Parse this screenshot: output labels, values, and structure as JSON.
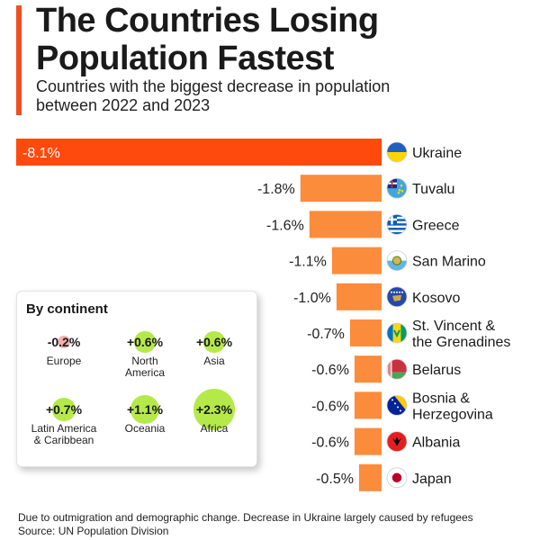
{
  "header": {
    "title_line1": "The Countries Losing",
    "title_line2": "Population Fastest",
    "subtitle_line1": "Countries with the biggest decrease in population",
    "subtitle_line2": "between 2022 and 2023"
  },
  "colors": {
    "accent": "#f04e23",
    "bar": "#fb8c3c",
    "bar_highlight": "#ff4a0e",
    "bubble": "#b5e94a",
    "negative_dot": "#f2b3b3"
  },
  "chart_data": {
    "type": "bar",
    "orientation": "horizontal",
    "title": "The Countries Losing Population Fastest",
    "subtitle": "Countries with the biggest decrease in population between 2022 and 2023",
    "unit": "%",
    "categories": [
      "Ukraine",
      "Tuvalu",
      "Greece",
      "San Marino",
      "Kosovo",
      "St. Vincent & the Grenadines",
      "Belarus",
      "Bosnia & Herzegovina",
      "Albania",
      "Japan"
    ],
    "values": [
      -8.1,
      -1.8,
      -1.6,
      -1.1,
      -1.0,
      -0.7,
      -0.6,
      -0.6,
      -0.6,
      -0.5
    ],
    "value_labels": [
      "-8.1%",
      "-1.8%",
      "-1.6%",
      "-1.1%",
      "-1.0%",
      "-0.7%",
      "-0.6%",
      "-0.6%",
      "-0.6%",
      "-0.5%"
    ],
    "country_label_lines": [
      [
        "Ukraine"
      ],
      [
        "Tuvalu"
      ],
      [
        "Greece"
      ],
      [
        "San Marino"
      ],
      [
        "Kosovo"
      ],
      [
        "St. Vincent &",
        "the Grenadines"
      ],
      [
        "Belarus"
      ],
      [
        "Bosnia &",
        "Herzegovina"
      ],
      [
        "Albania"
      ],
      [
        "Japan"
      ]
    ],
    "flags": [
      "ukraine-flag",
      "tuvalu-flag",
      "greece-flag",
      "san-marino-flag",
      "kosovo-flag",
      "st-vincent-flag",
      "belarus-flag",
      "bosnia-flag",
      "albania-flag",
      "japan-flag"
    ],
    "xlim": [
      -8.1,
      0
    ]
  },
  "continents": {
    "title": "By continent",
    "items": [
      {
        "name_lines": [
          "Europe"
        ],
        "value": -0.2,
        "label": "-0.2%"
      },
      {
        "name_lines": [
          "North",
          "America"
        ],
        "value": 0.6,
        "label": "+0.6%"
      },
      {
        "name_lines": [
          "Asia"
        ],
        "value": 0.6,
        "label": "+0.6%"
      },
      {
        "name_lines": [
          "Latin America",
          "& Caribbean"
        ],
        "value": 0.7,
        "label": "+0.7%"
      },
      {
        "name_lines": [
          "Oceania"
        ],
        "value": 1.1,
        "label": "+1.1%"
      },
      {
        "name_lines": [
          "Africa"
        ],
        "value": 2.3,
        "label": "+2.3%"
      }
    ]
  },
  "footer": {
    "note": "Due to outmigration and demographic change. Decrease in Ukraine largely caused by refugees",
    "source": "Source: UN Population Division"
  }
}
